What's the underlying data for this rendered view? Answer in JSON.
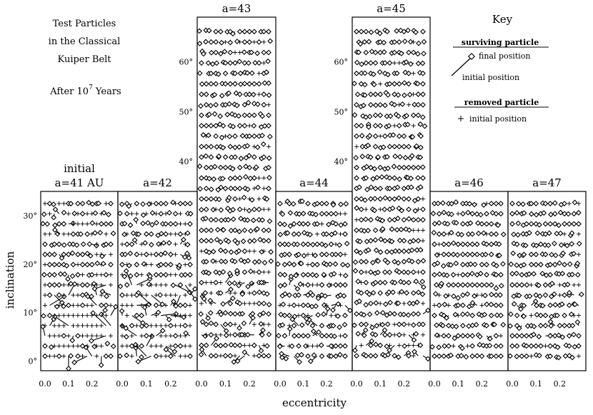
{
  "chart_data": {
    "type": "scatter",
    "title_lines": [
      "Test Particles",
      "in the Classical",
      "Kuiper Belt"
    ],
    "subtitle_text": "After 10",
    "subtitle_exponent": "7",
    "subtitle_suffix": " Years",
    "xlabel": "eccentricity",
    "ylabel": "inclination",
    "x_ticks": [
      "0.0",
      "0.1",
      "0.2"
    ],
    "y_ticks_short": [
      "0°",
      "10°",
      "20°",
      "30°"
    ],
    "y_ticks_tall": [
      "40°",
      "50°",
      "60°"
    ],
    "initial_label": "initial",
    "panels": [
      {
        "label": "a=41 AU",
        "a": 41,
        "ylim": [
          -2,
          35
        ],
        "e_max": 0.28,
        "i_max": 33,
        "survival_hi_inc": 0.7,
        "survival_lo_inc": 0.55,
        "chaos": 0.9
      },
      {
        "label": "a=42",
        "a": 42,
        "ylim": [
          -2,
          35
        ],
        "e_max": 0.28,
        "i_max": 33,
        "survival_hi_inc": 0.75,
        "survival_lo_inc": 0.5,
        "chaos": 1.0
      },
      {
        "label": "a=43",
        "a": 43,
        "ylim": [
          -2,
          69
        ],
        "e_max": 0.28,
        "i_max": 67,
        "survival_hi_inc": 0.95,
        "survival_lo_inc": 0.85,
        "chaos": 0.5
      },
      {
        "label": "a=44",
        "a": 44,
        "ylim": [
          -2,
          35
        ],
        "e_max": 0.28,
        "i_max": 33,
        "survival_hi_inc": 0.95,
        "survival_lo_inc": 0.85,
        "chaos": 0.5
      },
      {
        "label": "a=45",
        "a": 45,
        "ylim": [
          -2,
          69
        ],
        "e_max": 0.28,
        "i_max": 67,
        "survival_hi_inc": 0.97,
        "survival_lo_inc": 0.9,
        "chaos": 0.4
      },
      {
        "label": "a=46",
        "a": 46,
        "ylim": [
          -2,
          35
        ],
        "e_max": 0.28,
        "i_max": 33,
        "survival_hi_inc": 0.98,
        "survival_lo_inc": 0.92,
        "chaos": 0.3
      },
      {
        "label": "a=47",
        "a": 47,
        "ylim": [
          -2,
          35
        ],
        "e_max": 0.28,
        "i_max": 33,
        "survival_hi_inc": 0.98,
        "survival_lo_inc": 0.92,
        "chaos": 0.3
      }
    ],
    "key": {
      "title": "Key",
      "surviving_heading": "surviving particle",
      "final_position": "final position",
      "initial_position": "initial position",
      "removed_heading": "removed particle",
      "removed_initial": "initial position"
    }
  }
}
